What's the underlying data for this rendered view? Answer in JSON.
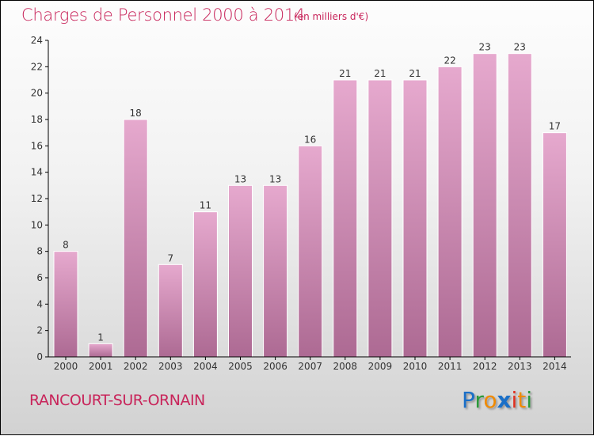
{
  "title": "Charges de Personnel 2000 à 2014",
  "subtitle": "(en milliers d'€)",
  "city": "RANCOURT-SUR-ORNAIN",
  "logo": {
    "text": "Proxiti",
    "letters": [
      [
        "P",
        "#1a6fc8"
      ],
      [
        "r",
        "#2a9a3a"
      ],
      [
        "o",
        "#f08a00"
      ],
      [
        "x",
        "#1a6fc8"
      ],
      [
        "i",
        "#e03020"
      ],
      [
        "t",
        "#f08a00"
      ],
      [
        "i",
        "#2a9a3a"
      ]
    ]
  },
  "chart_data": {
    "type": "bar",
    "title": "Charges de Personnel 2000 à 2014",
    "subtitle": "(en milliers d'€)",
    "categories": [
      "2000",
      "2001",
      "2002",
      "2003",
      "2004",
      "2005",
      "2006",
      "2007",
      "2008",
      "2009",
      "2010",
      "2011",
      "2012",
      "2013",
      "2014"
    ],
    "values": [
      8,
      1,
      18,
      7,
      11,
      13,
      13,
      16,
      21,
      21,
      21,
      22,
      23,
      23,
      17
    ],
    "ylim": [
      0,
      24
    ],
    "yticks": [
      0,
      2,
      4,
      6,
      8,
      10,
      12,
      14,
      16,
      18,
      20,
      22,
      24
    ],
    "xlabel": "",
    "ylabel": "",
    "bar_color_top": "#e6a9ce",
    "bar_color_bottom": "#ad6a93"
  }
}
